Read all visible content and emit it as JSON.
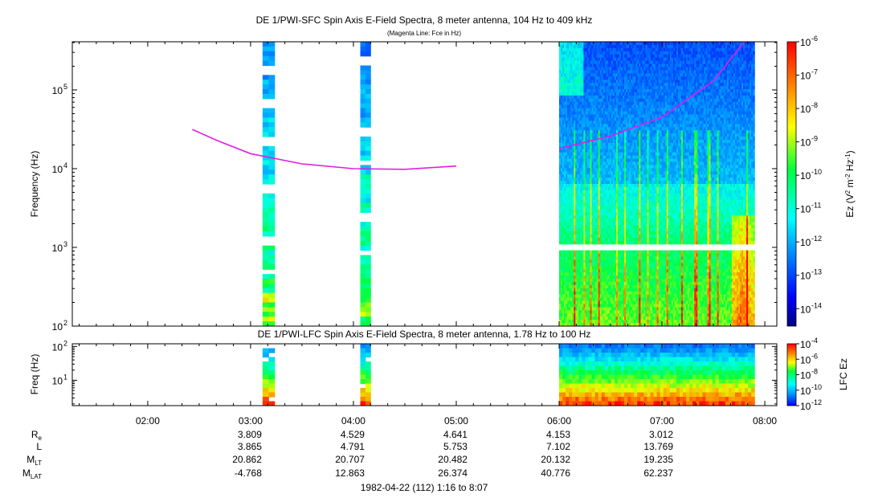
{
  "chart_data": [
    {
      "type": "heatmap",
      "title": "DE 1/PWI-SFC  Spin Axis E-Field Spectra, 8 meter antenna, 104 Hz to 409 kHz",
      "subtitle": "(Magenta Line: Fce in Hz)",
      "ylabel": "Frequency (Hz)",
      "yscale": "log",
      "ylim": [
        100,
        409000
      ],
      "ytick_labels": [
        "10",
        "10",
        "10",
        "10"
      ],
      "ytick_exponents": [
        "2",
        "3",
        "4",
        "5"
      ],
      "colorbar": {
        "label_prefix": "Ez (V",
        "label_sup1": "2",
        "label_mid": " m",
        "label_sup2": "-2",
        "label_mid2": " Hz",
        "label_sup3": "-1",
        "label_suffix": ")",
        "scale": "log",
        "range": [
          3e-15,
          1e-06
        ],
        "tick_exponents": [
          "-6",
          "-7",
          "-8",
          "-9",
          "-10",
          "-11",
          "-12",
          "-13",
          "-14"
        ],
        "tick_base": "10"
      },
      "data_intervals": [
        {
          "start": "03:07",
          "end": "03:14"
        },
        {
          "start": "04:04",
          "end": "04:10"
        },
        {
          "start": "06:00",
          "end": "07:54"
        }
      ],
      "fce_line": {
        "color": "#e020e0",
        "segments": [
          [
            [
              "02:26",
              31500
            ],
            [
              "02:40",
              23000
            ],
            [
              "03:00",
              15500
            ],
            [
              "03:30",
              11500
            ],
            [
              "04:00",
              10000
            ],
            [
              "04:30",
              9800
            ],
            [
              "05:00",
              10800
            ]
          ],
          [
            [
              "06:00",
              18000
            ],
            [
              "06:30",
              26000
            ],
            [
              "07:00",
              45000
            ],
            [
              "07:30",
              130000
            ],
            [
              "07:48",
              409000
            ]
          ]
        ]
      }
    },
    {
      "type": "heatmap",
      "title": "DE 1/PWI-LFC  Spin Axis E-Field Spectra, 8 meter antenna, 1.78 Hz to 100 Hz",
      "ylabel": "Freq (Hz)",
      "yscale": "log",
      "ylim": [
        1.78,
        120
      ],
      "ytick_labels": [
        "10",
        "10"
      ],
      "ytick_exponents": [
        "2",
        "1"
      ],
      "colorbar": {
        "label": "LFC Ez",
        "scale": "log",
        "range": [
          1e-12,
          0.0001
        ],
        "tick_exponents": [
          "-4",
          "-6",
          "-8",
          "-10",
          "-12"
        ],
        "tick_base": "10"
      },
      "data_intervals": [
        {
          "start": "03:07",
          "end": "03:14"
        },
        {
          "start": "04:04",
          "end": "04:10"
        },
        {
          "start": "06:00",
          "end": "07:54"
        }
      ]
    }
  ],
  "time_axis": {
    "start": "01:16",
    "end": "08:07",
    "tick_labels": [
      "02:00",
      "03:00",
      "04:00",
      "05:00",
      "06:00",
      "07:00",
      "08:00"
    ]
  },
  "ephemeris": {
    "rows": [
      {
        "label": "R",
        "sub": "e",
        "values": [
          "3.809",
          "4.529",
          "4.641",
          "4.153",
          "3.012"
        ]
      },
      {
        "label": "L",
        "sub": "",
        "values": [
          "3.865",
          "4.791",
          "5.753",
          "7.102",
          "13.769"
        ]
      },
      {
        "label": "M",
        "sub": "LT",
        "values": [
          "20.862",
          "20.707",
          "20.482",
          "20.132",
          "19.235"
        ]
      },
      {
        "label": "M",
        "sub": "LAT",
        "values": [
          "-4.768",
          "12.863",
          "26.374",
          "40.776",
          "62.237"
        ]
      }
    ],
    "times": [
      "03:00",
      "04:00",
      "05:00",
      "06:00",
      "07:00"
    ]
  },
  "footer": "1982-04-22 (112) 1:16 to 8:07"
}
